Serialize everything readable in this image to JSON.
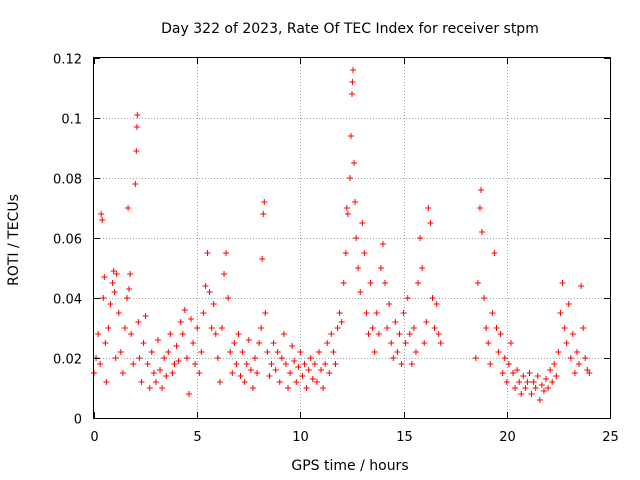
{
  "chart_data": {
    "type": "scatter",
    "title": "Day 322 of 2023, Rate Of TEC Index for receiver stpm",
    "xlabel": "GPS time / hours",
    "ylabel": "ROTI / TECUs",
    "xlim": [
      0,
      25
    ],
    "ylim": [
      0,
      0.12
    ],
    "xticks": [
      0,
      5,
      10,
      15,
      20,
      25
    ],
    "yticks": [
      0,
      0.02,
      0.04,
      0.06,
      0.08,
      0.1,
      0.12
    ],
    "xtick_labels": [
      "0",
      "5",
      "10",
      "15",
      "20",
      "25"
    ],
    "ytick_labels": [
      "0",
      "0.02",
      "0.04",
      "0.06",
      "0.08",
      "0.1",
      "0.12"
    ],
    "grid": true,
    "marker": "+",
    "color": "#ff0000",
    "series": [
      {
        "points": [
          [
            0.0,
            0.015
          ],
          [
            0.1,
            0.02
          ],
          [
            0.2,
            0.028
          ],
          [
            0.3,
            0.018
          ],
          [
            0.35,
            0.068
          ],
          [
            0.4,
            0.066
          ],
          [
            0.45,
            0.04
          ],
          [
            0.5,
            0.047
          ],
          [
            0.55,
            0.025
          ],
          [
            0.6,
            0.012
          ],
          [
            0.7,
            0.03
          ],
          [
            0.8,
            0.038
          ],
          [
            0.9,
            0.045
          ],
          [
            0.95,
            0.049
          ],
          [
            1.0,
            0.042
          ],
          [
            1.05,
            0.02
          ],
          [
            1.1,
            0.048
          ],
          [
            1.2,
            0.035
          ],
          [
            1.3,
            0.022
          ],
          [
            1.4,
            0.015
          ],
          [
            1.5,
            0.03
          ],
          [
            1.6,
            0.04
          ],
          [
            1.65,
            0.07
          ],
          [
            1.7,
            0.043
          ],
          [
            1.75,
            0.048
          ],
          [
            1.8,
            0.028
          ],
          [
            1.9,
            0.018
          ],
          [
            2.0,
            0.078
          ],
          [
            2.05,
            0.089
          ],
          [
            2.08,
            0.097
          ],
          [
            2.1,
            0.101
          ],
          [
            2.15,
            0.032
          ],
          [
            2.2,
            0.02
          ],
          [
            2.3,
            0.012
          ],
          [
            2.4,
            0.025
          ],
          [
            2.5,
            0.034
          ],
          [
            2.6,
            0.018
          ],
          [
            2.7,
            0.01
          ],
          [
            2.8,
            0.022
          ],
          [
            2.9,
            0.015
          ],
          [
            3.0,
            0.012
          ],
          [
            3.1,
            0.026
          ],
          [
            3.2,
            0.016
          ],
          [
            3.3,
            0.01
          ],
          [
            3.4,
            0.02
          ],
          [
            3.5,
            0.014
          ],
          [
            3.6,
            0.022
          ],
          [
            3.7,
            0.028
          ],
          [
            3.8,
            0.015
          ],
          [
            3.9,
            0.018
          ],
          [
            4.0,
            0.024
          ],
          [
            4.1,
            0.019
          ],
          [
            4.2,
            0.032
          ],
          [
            4.3,
            0.028
          ],
          [
            4.4,
            0.036
          ],
          [
            4.5,
            0.02
          ],
          [
            4.6,
            0.008
          ],
          [
            4.7,
            0.033
          ],
          [
            4.8,
            0.025
          ],
          [
            4.9,
            0.018
          ],
          [
            5.0,
            0.03
          ],
          [
            5.1,
            0.015
          ],
          [
            5.2,
            0.022
          ],
          [
            5.3,
            0.035
          ],
          [
            5.4,
            0.044
          ],
          [
            5.5,
            0.055
          ],
          [
            5.6,
            0.042
          ],
          [
            5.7,
            0.03
          ],
          [
            5.8,
            0.038
          ],
          [
            5.9,
            0.028
          ],
          [
            6.0,
            0.02
          ],
          [
            6.1,
            0.012
          ],
          [
            6.2,
            0.03
          ],
          [
            6.3,
            0.048
          ],
          [
            6.4,
            0.055
          ],
          [
            6.5,
            0.04
          ],
          [
            6.6,
            0.022
          ],
          [
            6.7,
            0.015
          ],
          [
            6.8,
            0.025
          ],
          [
            6.9,
            0.018
          ],
          [
            7.0,
            0.028
          ],
          [
            7.1,
            0.014
          ],
          [
            7.2,
            0.022
          ],
          [
            7.3,
            0.012
          ],
          [
            7.4,
            0.018
          ],
          [
            7.5,
            0.026
          ],
          [
            7.6,
            0.016
          ],
          [
            7.7,
            0.01
          ],
          [
            7.8,
            0.02
          ],
          [
            7.9,
            0.015
          ],
          [
            8.0,
            0.025
          ],
          [
            8.1,
            0.03
          ],
          [
            8.15,
            0.053
          ],
          [
            8.2,
            0.068
          ],
          [
            8.25,
            0.072
          ],
          [
            8.3,
            0.035
          ],
          [
            8.4,
            0.022
          ],
          [
            8.5,
            0.014
          ],
          [
            8.6,
            0.018
          ],
          [
            8.7,
            0.025
          ],
          [
            8.8,
            0.016
          ],
          [
            8.9,
            0.022
          ],
          [
            9.0,
            0.012
          ],
          [
            9.1,
            0.02
          ],
          [
            9.2,
            0.028
          ],
          [
            9.3,
            0.018
          ],
          [
            9.4,
            0.01
          ],
          [
            9.5,
            0.015
          ],
          [
            9.6,
            0.024
          ],
          [
            9.7,
            0.019
          ],
          [
            9.8,
            0.012
          ],
          [
            9.9,
            0.017
          ],
          [
            10.0,
            0.022
          ],
          [
            10.1,
            0.014
          ],
          [
            10.2,
            0.018
          ],
          [
            10.3,
            0.01
          ],
          [
            10.4,
            0.016
          ],
          [
            10.5,
            0.02
          ],
          [
            10.6,
            0.013
          ],
          [
            10.7,
            0.018
          ],
          [
            10.8,
            0.012
          ],
          [
            10.9,
            0.022
          ],
          [
            11.0,
            0.016
          ],
          [
            11.1,
            0.01
          ],
          [
            11.2,
            0.018
          ],
          [
            11.3,
            0.025
          ],
          [
            11.4,
            0.015
          ],
          [
            11.5,
            0.028
          ],
          [
            11.6,
            0.022
          ],
          [
            11.7,
            0.018
          ],
          [
            11.8,
            0.03
          ],
          [
            11.9,
            0.035
          ],
          [
            12.0,
            0.032
          ],
          [
            12.1,
            0.045
          ],
          [
            12.2,
            0.055
          ],
          [
            12.25,
            0.07
          ],
          [
            12.3,
            0.068
          ],
          [
            12.4,
            0.08
          ],
          [
            12.45,
            0.094
          ],
          [
            12.5,
            0.108
          ],
          [
            12.52,
            0.112
          ],
          [
            12.55,
            0.116
          ],
          [
            12.6,
            0.085
          ],
          [
            12.65,
            0.072
          ],
          [
            12.7,
            0.06
          ],
          [
            12.8,
            0.05
          ],
          [
            12.9,
            0.042
          ],
          [
            13.0,
            0.065
          ],
          [
            13.1,
            0.055
          ],
          [
            13.2,
            0.035
          ],
          [
            13.3,
            0.028
          ],
          [
            13.4,
            0.045
          ],
          [
            13.5,
            0.03
          ],
          [
            13.6,
            0.022
          ],
          [
            13.7,
            0.035
          ],
          [
            13.8,
            0.028
          ],
          [
            13.9,
            0.05
          ],
          [
            14.0,
            0.058
          ],
          [
            14.1,
            0.045
          ],
          [
            14.2,
            0.03
          ],
          [
            14.3,
            0.038
          ],
          [
            14.4,
            0.025
          ],
          [
            14.5,
            0.02
          ],
          [
            14.6,
            0.032
          ],
          [
            14.7,
            0.022
          ],
          [
            14.8,
            0.028
          ],
          [
            14.9,
            0.018
          ],
          [
            15.0,
            0.035
          ],
          [
            15.1,
            0.025
          ],
          [
            15.2,
            0.04
          ],
          [
            15.3,
            0.028
          ],
          [
            15.4,
            0.018
          ],
          [
            15.5,
            0.03
          ],
          [
            15.6,
            0.022
          ],
          [
            15.7,
            0.045
          ],
          [
            15.8,
            0.06
          ],
          [
            15.9,
            0.05
          ],
          [
            16.0,
            0.025
          ],
          [
            16.1,
            0.032
          ],
          [
            16.2,
            0.07
          ],
          [
            16.3,
            0.065
          ],
          [
            16.4,
            0.04
          ],
          [
            16.5,
            0.03
          ],
          [
            16.6,
            0.038
          ],
          [
            16.7,
            0.028
          ],
          [
            16.8,
            0.025
          ],
          [
            18.5,
            0.02
          ],
          [
            18.6,
            0.045
          ],
          [
            18.7,
            0.07
          ],
          [
            18.75,
            0.076
          ],
          [
            18.8,
            0.062
          ],
          [
            18.9,
            0.04
          ],
          [
            19.0,
            0.03
          ],
          [
            19.1,
            0.025
          ],
          [
            19.2,
            0.018
          ],
          [
            19.3,
            0.035
          ],
          [
            19.4,
            0.055
          ],
          [
            19.5,
            0.03
          ],
          [
            19.6,
            0.022
          ],
          [
            19.7,
            0.028
          ],
          [
            19.8,
            0.015
          ],
          [
            19.9,
            0.02
          ],
          [
            20.0,
            0.012
          ],
          [
            20.1,
            0.018
          ],
          [
            20.2,
            0.025
          ],
          [
            20.3,
            0.015
          ],
          [
            20.4,
            0.01
          ],
          [
            20.5,
            0.016
          ],
          [
            20.6,
            0.012
          ],
          [
            20.7,
            0.008
          ],
          [
            20.8,
            0.014
          ],
          [
            20.9,
            0.01
          ],
          [
            21.0,
            0.012
          ],
          [
            21.1,
            0.015
          ],
          [
            21.2,
            0.008
          ],
          [
            21.3,
            0.012
          ],
          [
            21.4,
            0.01
          ],
          [
            21.5,
            0.014
          ],
          [
            21.6,
            0.006
          ],
          [
            21.7,
            0.011
          ],
          [
            21.8,
            0.009
          ],
          [
            21.9,
            0.013
          ],
          [
            22.0,
            0.01
          ],
          [
            22.1,
            0.016
          ],
          [
            22.2,
            0.012
          ],
          [
            22.3,
            0.018
          ],
          [
            22.4,
            0.014
          ],
          [
            22.5,
            0.022
          ],
          [
            22.6,
            0.035
          ],
          [
            22.7,
            0.045
          ],
          [
            22.8,
            0.03
          ],
          [
            22.9,
            0.025
          ],
          [
            23.0,
            0.038
          ],
          [
            23.1,
            0.02
          ],
          [
            23.2,
            0.028
          ],
          [
            23.3,
            0.015
          ],
          [
            23.4,
            0.022
          ],
          [
            23.5,
            0.018
          ],
          [
            23.6,
            0.044
          ],
          [
            23.7,
            0.03
          ],
          [
            23.8,
            0.02
          ],
          [
            23.9,
            0.016
          ],
          [
            24.0,
            0.015
          ]
        ]
      }
    ]
  }
}
